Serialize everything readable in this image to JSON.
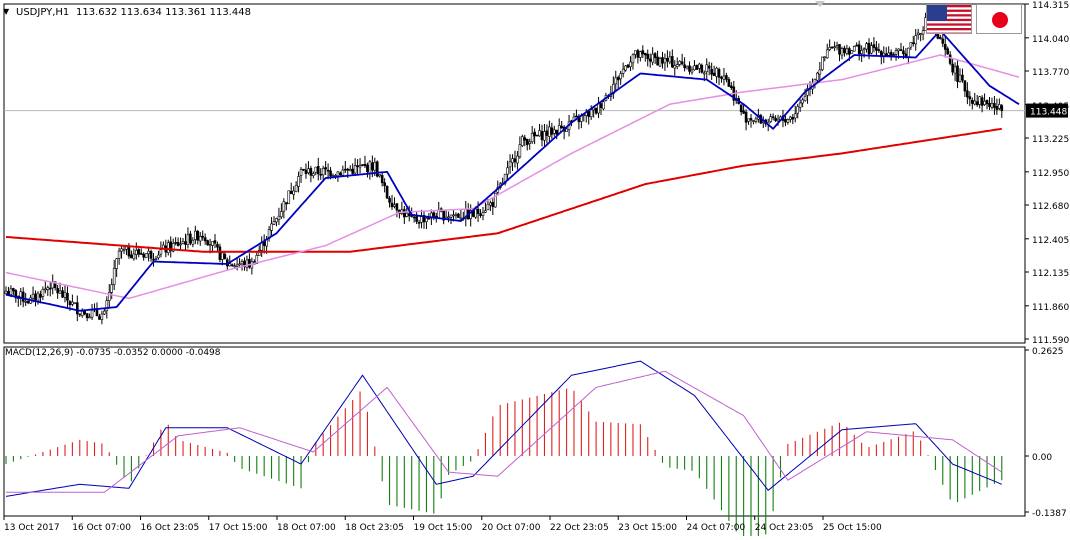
{
  "main": {
    "symbol_label": "USDJPY,H1",
    "ohlc_label": "113.632 113.634 113.361 113.448",
    "collapse_arrow": "▼",
    "price_axis": [
      "114.315",
      "114.040",
      "113.770",
      "113.495",
      "113.225",
      "112.950",
      "112.680",
      "112.405",
      "112.135",
      "111.860",
      "111.590"
    ],
    "current_price": "113.448"
  },
  "macd_panel": {
    "label": "MACD(12,26,9) -0.0735 -0.0352 0.0000 -0.0498",
    "axis": [
      "0.2625",
      "0.00",
      "-0.1387"
    ]
  },
  "time_axis": [
    "13 Oct 2017",
    "16 Oct 07:00",
    "16 Oct 23:05",
    "17 Oct 15:00",
    "18 Oct 07:00",
    "18 Oct 23:05",
    "19 Oct 15:00",
    "20 Oct 07:00",
    "22 Oct 23:05",
    "23 Oct 15:00",
    "24 Oct 07:00",
    "24 Oct 23:05",
    "25 Oct 15:00"
  ],
  "flags": {
    "left": "us-flag-icon",
    "right": "japan-flag-icon"
  },
  "colors": {
    "background": "#ffffff",
    "candle": "#000000",
    "ma_fast": "#0000c0",
    "ma_mid": "#e68ee6",
    "ma_slow": "#e00000",
    "hist_up": "#e02020",
    "hist_down": "#108010",
    "macd_line": "#0000b0",
    "signal_line": "#c060d0",
    "current_price_bg": "#000000"
  },
  "chart_data": [
    {
      "type": "candlestick",
      "ylim": [
        111.59,
        114.315
      ],
      "anchors_close": [
        [
          0,
          111.98
        ],
        [
          10,
          111.9
        ],
        [
          18,
          112.03
        ],
        [
          30,
          111.82
        ],
        [
          40,
          111.78
        ],
        [
          46,
          112.3
        ],
        [
          60,
          112.28
        ],
        [
          80,
          112.45
        ],
        [
          90,
          112.2
        ],
        [
          100,
          112.2
        ],
        [
          112,
          112.65
        ],
        [
          120,
          112.95
        ],
        [
          135,
          112.95
        ],
        [
          150,
          113.0
        ],
        [
          155,
          112.75
        ],
        [
          165,
          112.55
        ],
        [
          175,
          112.6
        ],
        [
          190,
          112.6
        ],
        [
          198,
          112.7
        ],
        [
          210,
          113.2
        ],
        [
          225,
          113.3
        ],
        [
          240,
          113.45
        ],
        [
          255,
          113.9
        ],
        [
          268,
          113.85
        ],
        [
          280,
          113.8
        ],
        [
          292,
          113.75
        ],
        [
          300,
          113.4
        ],
        [
          312,
          113.35
        ],
        [
          320,
          113.4
        ],
        [
          335,
          113.95
        ],
        [
          350,
          113.95
        ],
        [
          365,
          113.9
        ],
        [
          375,
          114.2
        ],
        [
          385,
          113.8
        ],
        [
          392,
          113.55
        ],
        [
          400,
          113.5
        ],
        [
          405,
          113.45
        ]
      ],
      "ma_slow": [
        [
          0,
          112.42
        ],
        [
          80,
          112.3
        ],
        [
          140,
          112.3
        ],
        [
          200,
          112.45
        ],
        [
          260,
          112.85
        ],
        [
          300,
          113.0
        ],
        [
          340,
          113.1
        ],
        [
          405,
          113.3
        ]
      ],
      "ma_mid": [
        [
          0,
          112.13
        ],
        [
          50,
          111.92
        ],
        [
          90,
          112.15
        ],
        [
          130,
          112.35
        ],
        [
          160,
          112.62
        ],
        [
          190,
          112.65
        ],
        [
          230,
          113.1
        ],
        [
          270,
          113.5
        ],
        [
          300,
          113.6
        ],
        [
          340,
          113.7
        ],
        [
          380,
          113.9
        ],
        [
          412,
          113.72
        ]
      ],
      "ma_fast": [
        [
          0,
          111.95
        ],
        [
          30,
          111.82
        ],
        [
          45,
          111.85
        ],
        [
          60,
          112.22
        ],
        [
          90,
          112.2
        ],
        [
          110,
          112.45
        ],
        [
          130,
          112.9
        ],
        [
          155,
          112.95
        ],
        [
          165,
          112.6
        ],
        [
          185,
          112.55
        ],
        [
          205,
          112.9
        ],
        [
          230,
          113.35
        ],
        [
          258,
          113.75
        ],
        [
          285,
          113.7
        ],
        [
          300,
          113.5
        ],
        [
          312,
          113.3
        ],
        [
          325,
          113.6
        ],
        [
          345,
          113.9
        ],
        [
          370,
          113.88
        ],
        [
          380,
          114.1
        ],
        [
          400,
          113.65
        ],
        [
          412,
          113.5
        ]
      ]
    },
    {
      "type": "macd",
      "parameters": [
        12,
        26,
        9
      ],
      "ylim": [
        -0.1387,
        0.2625
      ],
      "macd": [
        [
          0,
          -0.1
        ],
        [
          30,
          -0.07
        ],
        [
          50,
          -0.08
        ],
        [
          65,
          0.07
        ],
        [
          90,
          0.07
        ],
        [
          120,
          -0.02
        ],
        [
          145,
          0.2
        ],
        [
          175,
          -0.07
        ],
        [
          190,
          -0.05
        ],
        [
          230,
          0.2
        ],
        [
          258,
          0.235
        ],
        [
          280,
          0.15
        ],
        [
          310,
          -0.085
        ],
        [
          340,
          0.065
        ],
        [
          370,
          0.08
        ],
        [
          385,
          -0.02
        ],
        [
          405,
          -0.07
        ]
      ],
      "signal": [
        [
          0,
          -0.09
        ],
        [
          40,
          -0.09
        ],
        [
          70,
          0.05
        ],
        [
          95,
          0.07
        ],
        [
          125,
          0.01
        ],
        [
          155,
          0.17
        ],
        [
          180,
          -0.04
        ],
        [
          200,
          -0.05
        ],
        [
          240,
          0.17
        ],
        [
          268,
          0.21
        ],
        [
          300,
          0.1
        ],
        [
          318,
          -0.06
        ],
        [
          350,
          0.06
        ],
        [
          385,
          0.04
        ],
        [
          405,
          -0.04
        ]
      ]
    }
  ]
}
